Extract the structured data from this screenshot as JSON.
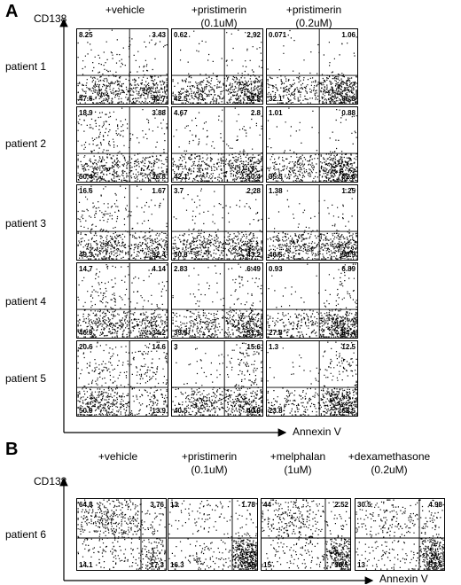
{
  "panel_a": {
    "letter": "A",
    "y_axis_label": "CD138",
    "x_axis_label": "Annexin V",
    "columns": [
      {
        "line1": "+vehicle",
        "line2": ""
      },
      {
        "line1": "+pristimerin",
        "line2": "(0.1uM)"
      },
      {
        "line1": "+pristimerin",
        "line2": "(0.2uM)"
      }
    ],
    "rows": [
      {
        "label": "patient 1",
        "plots": [
          {
            "tl": "8.25",
            "tr": "3.43",
            "bl": "47.6",
            "br": "40.7"
          },
          {
            "tl": "0.62",
            "tr": "2.92",
            "bl": "42.5",
            "br": "53.9"
          },
          {
            "tl": "0.071",
            "tr": "1.06",
            "bl": "32.1",
            "br": "66.8"
          }
        ]
      },
      {
        "label": "patient 2",
        "plots": [
          {
            "tl": "18.9",
            "tr": "3.88",
            "bl": "50.4",
            "br": "26.8"
          },
          {
            "tl": "4.67",
            "tr": "2.8",
            "bl": "42.1",
            "br": "50.4"
          },
          {
            "tl": "1.01",
            "tr": "0.88",
            "bl": "35.5",
            "br": "62.6"
          }
        ]
      },
      {
        "label": "patient 3",
        "plots": [
          {
            "tl": "16.6",
            "tr": "1.67",
            "bl": "49.3",
            "br": "32.4"
          },
          {
            "tl": "3.7",
            "tr": "2.28",
            "bl": "50.8",
            "br": "43.2"
          },
          {
            "tl": "1.38",
            "tr": "1.25",
            "bl": "46.5",
            "br": "50.9"
          }
        ]
      },
      {
        "label": "patient 4",
        "plots": [
          {
            "tl": "14.7",
            "tr": "4.14",
            "bl": "46.9",
            "br": "34.2"
          },
          {
            "tl": "2.83",
            "tr": "6.49",
            "bl": "39.5",
            "br": "51.1"
          },
          {
            "tl": "0.93",
            "tr": "6.89",
            "bl": "27.8",
            "br": "64.4"
          }
        ]
      },
      {
        "label": "patient 5",
        "plots": [
          {
            "tl": "20.6",
            "tr": "14.6",
            "bl": "50.9",
            "br": "13.9"
          },
          {
            "tl": "3",
            "tr": "15.6",
            "bl": "40.5",
            "br": "40.9"
          },
          {
            "tl": "1.3",
            "tr": "12.5",
            "bl": "23.8",
            "br": "62.5"
          }
        ]
      }
    ]
  },
  "panel_b": {
    "letter": "B",
    "y_axis_label": "CD138",
    "x_axis_label": "Annexin V",
    "columns": [
      {
        "line1": "+vehicle",
        "line2": ""
      },
      {
        "line1": "+pristimerin",
        "line2": "(0.1uM)"
      },
      {
        "line1": "+melphalan",
        "line2": "(1uM)"
      },
      {
        "line1": "+dexamethasone",
        "line2": "(0.2uM)"
      }
    ],
    "rows": [
      {
        "label": "patient 6",
        "plots": [
          {
            "tl": "64.8",
            "tr": "3.76",
            "bl": "14.1",
            "br": "17.3"
          },
          {
            "tl": "13",
            "tr": "1.78",
            "bl": "16.3",
            "br": "69"
          },
          {
            "tl": "44",
            "tr": "2.52",
            "bl": "15",
            "br": "38.5"
          },
          {
            "tl": "30.5",
            "tr": "4.98",
            "bl": "13",
            "br": "51.5"
          }
        ]
      }
    ]
  }
}
